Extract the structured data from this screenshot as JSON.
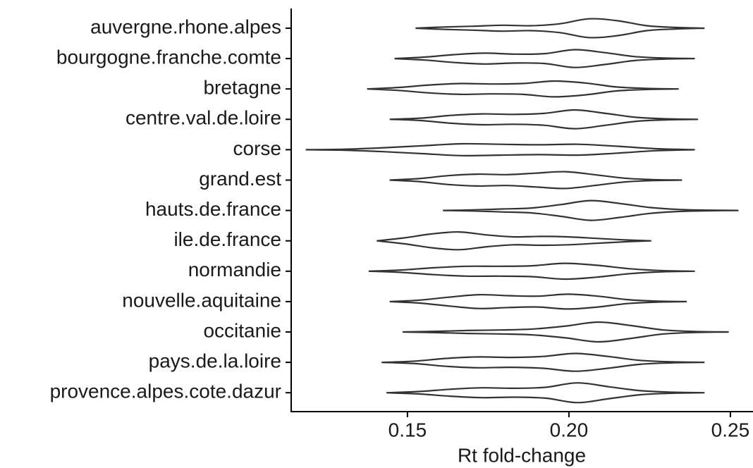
{
  "chart_data": {
    "type": "violin",
    "x_label": "Rt fold-change",
    "xlim": [
      0.114,
      0.257
    ],
    "xticks": [
      {
        "value": 0.15,
        "label": "0.15"
      },
      {
        "value": 0.2,
        "label": "0.20"
      },
      {
        "value": 0.25,
        "label": "0.25"
      }
    ],
    "color": "#333333",
    "categories": [
      "auvergne.rhone.alpes",
      "bourgogne.franche.comte",
      "bretagne",
      "centre.val.de.loire",
      "corse",
      "grand.est",
      "hauts.de.france",
      "ile.de.france",
      "normandie",
      "nouvelle.aquitaine",
      "occitanie",
      "pays.de.la.loire",
      "provence.alpes.cote.dazur"
    ],
    "violins": [
      {
        "min": 0.1525,
        "max": 0.242,
        "density": [
          0,
          0.12,
          0.2,
          0.3,
          0.25,
          0.45,
          0.95,
          0.75,
          0.25,
          0.08,
          0
        ]
      },
      {
        "min": 0.146,
        "max": 0.239,
        "density": [
          0,
          0.15,
          0.4,
          0.55,
          0.45,
          0.5,
          0.9,
          0.6,
          0.2,
          0.05,
          0
        ]
      },
      {
        "min": 0.1375,
        "max": 0.234,
        "density": [
          0,
          0.15,
          0.4,
          0.55,
          0.5,
          0.55,
          0.8,
          0.6,
          0.2,
          0.05,
          0
        ]
      },
      {
        "min": 0.1445,
        "max": 0.24,
        "density": [
          0,
          0.12,
          0.4,
          0.55,
          0.5,
          0.6,
          0.95,
          0.6,
          0.2,
          0.05,
          0
        ]
      },
      {
        "min": 0.1185,
        "max": 0.239,
        "density": [
          0,
          0.05,
          0.2,
          0.4,
          0.6,
          0.55,
          0.5,
          0.55,
          0.35,
          0.1,
          0
        ]
      },
      {
        "min": 0.1445,
        "max": 0.235,
        "density": [
          0,
          0.15,
          0.45,
          0.6,
          0.55,
          0.7,
          0.85,
          0.55,
          0.2,
          0.05,
          0
        ]
      },
      {
        "min": 0.161,
        "max": 0.2525,
        "density": [
          0,
          0.05,
          0.15,
          0.25,
          0.6,
          1,
          0.7,
          0.3,
          0.1,
          0.03,
          0
        ]
      },
      {
        "min": 0.1405,
        "max": 0.2255,
        "density": [
          0,
          0.3,
          0.7,
          0.9,
          0.6,
          0.4,
          0.45,
          0.4,
          0.25,
          0.1,
          0
        ]
      },
      {
        "min": 0.138,
        "max": 0.239,
        "density": [
          0,
          0.12,
          0.35,
          0.5,
          0.5,
          0.55,
          0.8,
          0.6,
          0.25,
          0.06,
          0
        ]
      },
      {
        "min": 0.1445,
        "max": 0.2365,
        "density": [
          0,
          0.15,
          0.45,
          0.7,
          0.6,
          0.55,
          0.75,
          0.55,
          0.2,
          0.05,
          0
        ]
      },
      {
        "min": 0.1485,
        "max": 0.2495,
        "density": [
          0,
          0.06,
          0.15,
          0.2,
          0.3,
          0.6,
          1,
          0.65,
          0.2,
          0.05,
          0
        ]
      },
      {
        "min": 0.142,
        "max": 0.242,
        "density": [
          0,
          0.12,
          0.4,
          0.55,
          0.5,
          0.6,
          0.9,
          0.6,
          0.2,
          0.05,
          0
        ]
      },
      {
        "min": 0.1435,
        "max": 0.242,
        "density": [
          0,
          0.12,
          0.35,
          0.5,
          0.45,
          0.55,
          1,
          0.6,
          0.2,
          0.05,
          0
        ]
      }
    ]
  }
}
